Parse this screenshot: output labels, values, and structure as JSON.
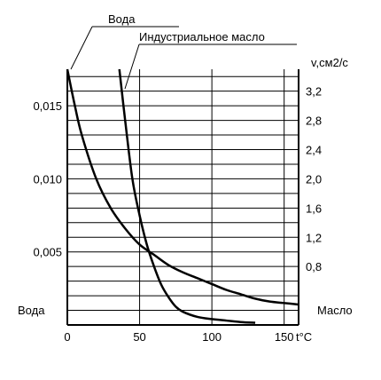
{
  "chart_data": {
    "type": "line",
    "title": "",
    "xlabel": "t°C",
    "left_axis": {
      "label": "Вода",
      "ticks": [
        "0,005",
        "0,010",
        "0,015"
      ],
      "tick_values": [
        0.005,
        0.01,
        0.015
      ],
      "range": [
        0,
        0.0175
      ]
    },
    "right_axis": {
      "label": "v,см2/с",
      "ticks": [
        "0,8",
        "1,2",
        "1,6",
        "2,0",
        "2,4",
        "2,8",
        "3,2"
      ],
      "tick_values": [
        0.8,
        1.2,
        1.6,
        2.0,
        2.4,
        2.8,
        3.2
      ],
      "range": [
        0,
        3.5
      ],
      "bottom_label": "Масло"
    },
    "x_ticks": [
      "0",
      "50",
      "100",
      "150"
    ],
    "x_tick_values": [
      0,
      50,
      100,
      150
    ],
    "xlim": [
      0,
      160
    ],
    "grid": true,
    "series": [
      {
        "name": "Вода",
        "axis": "left",
        "x": [
          0,
          5,
          10,
          20,
          30,
          40,
          50,
          60,
          70,
          80,
          90,
          100,
          110,
          120,
          130,
          140,
          150,
          160
        ],
        "y": [
          0.0175,
          0.0151,
          0.013,
          0.01,
          0.008,
          0.0066,
          0.0055,
          0.0048,
          0.0041,
          0.0036,
          0.0032,
          0.0028,
          0.0024,
          0.0021,
          0.0018,
          0.0016,
          0.0015,
          0.0014
        ]
      },
      {
        "name": "Индустриальное масло",
        "axis": "right",
        "x": [
          36,
          40,
          45,
          50,
          55,
          60,
          65,
          70,
          75,
          80,
          90,
          100,
          110,
          120,
          130
        ],
        "y": [
          3.5,
          2.8,
          2.0,
          1.5,
          1.1,
          0.8,
          0.55,
          0.38,
          0.25,
          0.18,
          0.11,
          0.08,
          0.06,
          0.04,
          0.03
        ]
      }
    ]
  }
}
